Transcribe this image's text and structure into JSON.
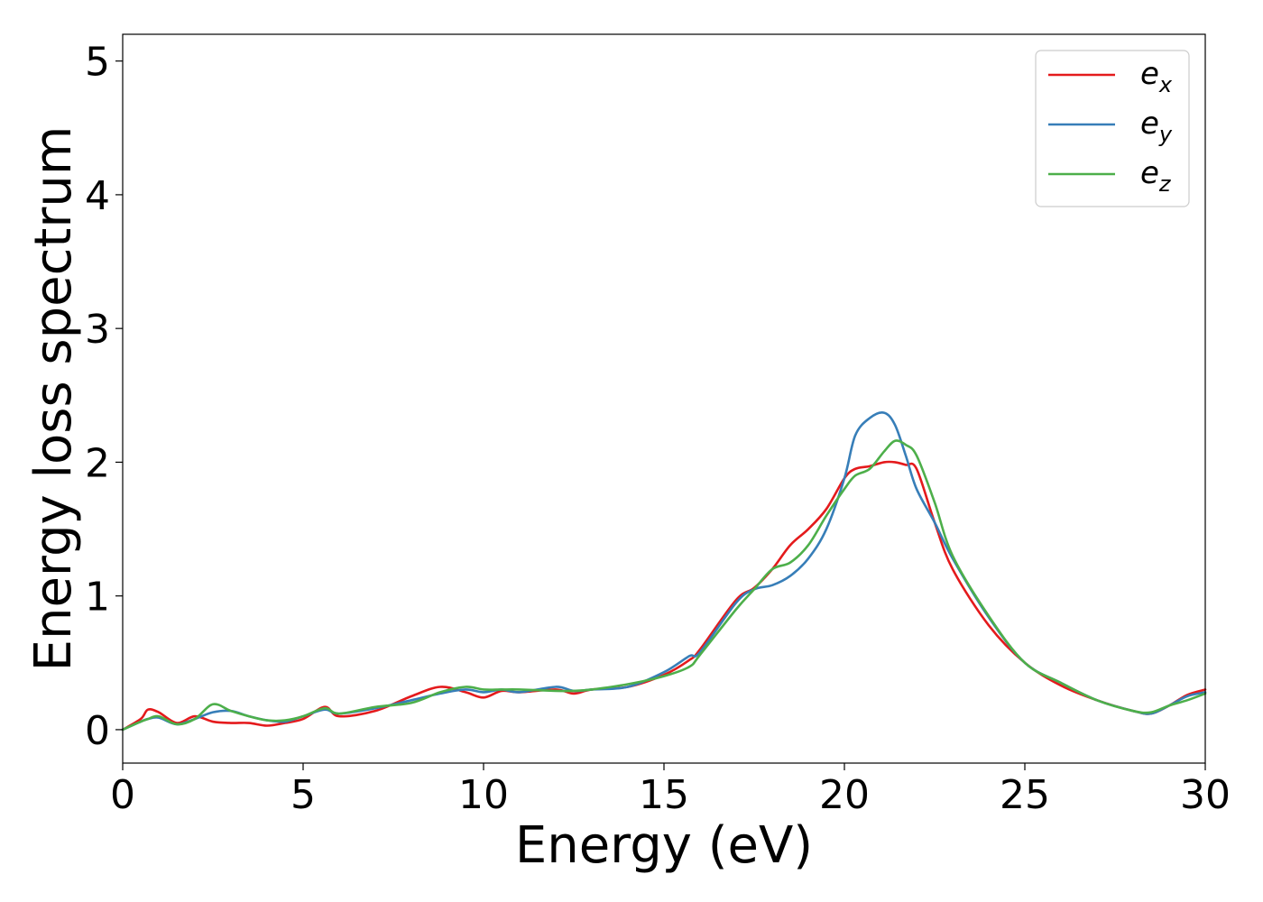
{
  "chart_data": {
    "type": "line",
    "title": "",
    "xlabel": "Energy (eV)",
    "ylabel": "Energy loss spectrum",
    "xlim": [
      0,
      30
    ],
    "ylim": [
      -0.25,
      5.2
    ],
    "xticks": [
      "0",
      "5",
      "10",
      "15",
      "20",
      "25",
      "30"
    ],
    "yticks": [
      "0",
      "1",
      "2",
      "3",
      "4",
      "5"
    ],
    "grid": false,
    "legend_position": "top-right",
    "x": [
      0,
      0.5,
      0.7,
      1,
      1.5,
      2,
      2.5,
      3,
      3.5,
      4,
      4.5,
      5,
      5.6,
      6,
      7,
      8,
      8.8,
      9.5,
      10,
      10.5,
      11,
      12,
      12.5,
      13,
      14,
      15,
      15.7,
      16,
      17,
      17.5,
      18,
      18.5,
      19,
      19.5,
      20,
      20.3,
      20.7,
      21.1,
      21.4,
      21.7,
      22,
      22.5,
      23,
      24,
      25,
      26,
      27,
      28,
      28.5,
      29,
      29.5,
      30
    ],
    "series": [
      {
        "name": "e",
        "subscript": "x",
        "color": "#e41a1c",
        "values": [
          0.0,
          0.08,
          0.15,
          0.13,
          0.05,
          0.1,
          0.06,
          0.05,
          0.05,
          0.03,
          0.05,
          0.08,
          0.17,
          0.1,
          0.14,
          0.25,
          0.32,
          0.28,
          0.24,
          0.29,
          0.28,
          0.3,
          0.27,
          0.3,
          0.32,
          0.41,
          0.52,
          0.6,
          0.97,
          1.06,
          1.2,
          1.38,
          1.5,
          1.65,
          1.88,
          1.95,
          1.97,
          2.0,
          2.0,
          1.98,
          1.95,
          1.55,
          1.2,
          0.78,
          0.5,
          0.33,
          0.22,
          0.14,
          0.12,
          0.18,
          0.26,
          0.3
        ]
      },
      {
        "name": "e",
        "subscript": "y",
        "color": "#377eb8",
        "values": [
          0.0,
          0.06,
          0.08,
          0.09,
          0.04,
          0.08,
          0.13,
          0.14,
          0.1,
          0.07,
          0.06,
          0.1,
          0.15,
          0.12,
          0.16,
          0.22,
          0.27,
          0.3,
          0.28,
          0.3,
          0.28,
          0.32,
          0.29,
          0.3,
          0.32,
          0.43,
          0.55,
          0.58,
          0.95,
          1.05,
          1.08,
          1.15,
          1.28,
          1.5,
          1.88,
          2.2,
          2.33,
          2.37,
          2.28,
          2.05,
          1.8,
          1.55,
          1.28,
          0.84,
          0.5,
          0.35,
          0.22,
          0.14,
          0.12,
          0.18,
          0.25,
          0.28
        ]
      },
      {
        "name": "e",
        "subscript": "z",
        "color": "#4daf4a",
        "values": [
          0.0,
          0.06,
          0.08,
          0.1,
          0.04,
          0.08,
          0.19,
          0.14,
          0.1,
          0.07,
          0.07,
          0.1,
          0.16,
          0.12,
          0.17,
          0.2,
          0.28,
          0.32,
          0.3,
          0.3,
          0.3,
          0.29,
          0.29,
          0.3,
          0.34,
          0.4,
          0.47,
          0.56,
          0.9,
          1.05,
          1.2,
          1.25,
          1.38,
          1.6,
          1.8,
          1.9,
          1.95,
          2.08,
          2.16,
          2.13,
          2.05,
          1.7,
          1.3,
          0.85,
          0.5,
          0.35,
          0.22,
          0.14,
          0.13,
          0.18,
          0.22,
          0.27
        ]
      }
    ]
  }
}
